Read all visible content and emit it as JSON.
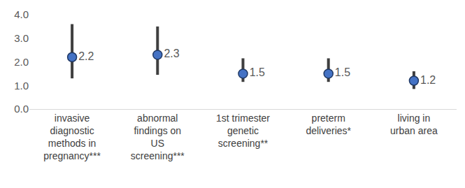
{
  "chart_data": {
    "type": "scatter",
    "categories": [
      "invasive diagnostic methods in pregnancy***",
      "abnormal findings on US screening***",
      "1st trimester genetic screening**",
      "preterm deliveries*",
      "living in urban area"
    ],
    "values": [
      2.2,
      2.3,
      1.5,
      1.5,
      1.2
    ],
    "error_low": [
      1.3,
      1.45,
      1.15,
      1.15,
      0.85
    ],
    "error_high": [
      3.6,
      3.5,
      2.15,
      2.15,
      1.6
    ],
    "color": "#4472c4",
    "marker": "circle",
    "data_labels": true,
    "ylim": [
      0,
      4
    ],
    "yticks": [
      {
        "value": 0,
        "label": "0.0"
      },
      {
        "value": 1,
        "label": "1.0"
      },
      {
        "value": 2,
        "label": "2.0"
      },
      {
        "value": 3,
        "label": "3.0"
      },
      {
        "value": 4,
        "label": "4.0"
      }
    ],
    "grid": false
  }
}
